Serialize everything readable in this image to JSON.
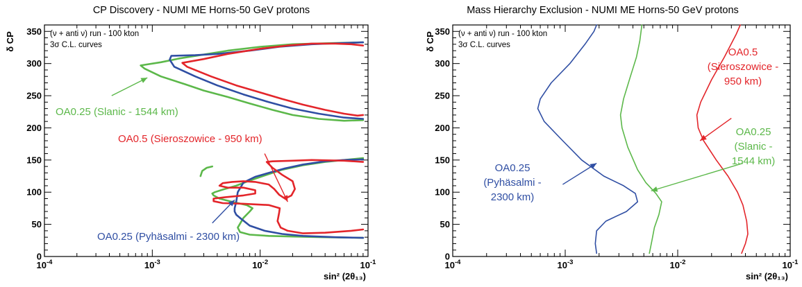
{
  "chart_data": [
    {
      "type": "line",
      "title": "CP Discovery - NUMI ME Horns-50 GeV protons",
      "xlabel": "sin² (2θ₁₃)",
      "ylabel": "δ CP",
      "xscale": "log",
      "xlim": [
        0.0001,
        0.1
      ],
      "ylim": [
        0,
        360
      ],
      "x_ticks": [
        {
          "value": 0.0001,
          "base": "10",
          "exp": "-4"
        },
        {
          "value": 0.001,
          "base": "10",
          "exp": "-3"
        },
        {
          "value": 0.01,
          "base": "10",
          "exp": "-2"
        },
        {
          "value": 0.1,
          "base": "10",
          "exp": "-1"
        }
      ],
      "y_ticks": [
        0,
        50,
        100,
        150,
        200,
        250,
        300,
        350
      ],
      "info_lines": [
        "(ν + anti ν) run - 100 kton",
        "3σ C.L. curves"
      ],
      "series": [
        {
          "color": "#5cb84a",
          "segments": [
            [
              [
                0.09,
                333
              ],
              [
                0.05,
                332
              ],
              [
                0.02,
                330
              ],
              [
                0.01,
                326
              ],
              [
                0.005,
                320
              ],
              [
                0.003,
                314
              ],
              [
                0.0018,
                308
              ],
              [
                0.0012,
                302
              ],
              [
                0.00078,
                297
              ],
              [
                0.00085,
                292
              ],
              [
                0.0012,
                280
              ],
              [
                0.002,
                268
              ],
              [
                0.003,
                258
              ],
              [
                0.005,
                248
              ],
              [
                0.008,
                238
              ],
              [
                0.013,
                228
              ],
              [
                0.02,
                220
              ],
              [
                0.035,
                214
              ],
              [
                0.06,
                211
              ],
              [
                0.09,
                212
              ]
            ],
            [
              [
                0.09,
                153
              ],
              [
                0.06,
                150
              ],
              [
                0.04,
                147
              ],
              [
                0.025,
                142
              ],
              [
                0.016,
                135
              ],
              [
                0.011,
                126
              ],
              [
                0.008,
                118
              ],
              [
                0.006,
                110
              ],
              [
                0.0045,
                104
              ],
              [
                0.0038,
                100
              ],
              [
                0.0036,
                98
              ],
              [
                0.0037,
                95
              ],
              [
                0.0042,
                90
              ],
              [
                0.0055,
                85
              ],
              [
                0.0075,
                80
              ],
              [
                0.0085,
                75
              ],
              [
                0.008,
                70
              ],
              [
                0.007,
                60
              ],
              [
                0.0062,
                45
              ],
              [
                0.0065,
                38
              ],
              [
                0.008,
                34
              ],
              [
                0.012,
                32
              ],
              [
                0.02,
                31
              ],
              [
                0.04,
                30
              ],
              [
                0.09,
                29
              ]
            ],
            [
              [
                0.0028,
                125
              ],
              [
                0.0029,
                133
              ],
              [
                0.0032,
                138
              ],
              [
                0.0036,
                140
              ]
            ]
          ]
        },
        {
          "color": "#2f4ea3",
          "segments": [
            [
              [
                0.09,
                333
              ],
              [
                0.06,
                332
              ],
              [
                0.03,
                330
              ],
              [
                0.015,
                326
              ],
              [
                0.008,
                320
              ],
              [
                0.004,
                315
              ],
              [
                0.0025,
                313
              ],
              [
                0.0015,
                312
              ],
              [
                0.00145,
                306
              ],
              [
                0.0016,
                295
              ],
              [
                0.0025,
                280
              ],
              [
                0.004,
                266
              ],
              [
                0.007,
                252
              ],
              [
                0.012,
                240
              ],
              [
                0.02,
                230
              ],
              [
                0.035,
                222
              ],
              [
                0.06,
                216
              ],
              [
                0.09,
                214
              ]
            ],
            [
              [
                0.09,
                151
              ],
              [
                0.06,
                150
              ],
              [
                0.04,
                148
              ],
              [
                0.025,
                143
              ],
              [
                0.017,
                137
              ],
              [
                0.012,
                130
              ],
              [
                0.009,
                124
              ],
              [
                0.007,
                115
              ],
              [
                0.0062,
                100
              ],
              [
                0.006,
                85
              ],
              [
                0.0058,
                75
              ],
              [
                0.0058,
                70
              ],
              [
                0.006,
                65
              ],
              [
                0.0065,
                60
              ],
              [
                0.008,
                48
              ],
              [
                0.011,
                40
              ],
              [
                0.016,
                35
              ],
              [
                0.025,
                32
              ],
              [
                0.05,
                30
              ],
              [
                0.09,
                29
              ]
            ]
          ]
        },
        {
          "color": "#e3252a",
          "segments": [
            [
              [
                0.09,
                328
              ],
              [
                0.07,
                330
              ],
              [
                0.05,
                331
              ],
              [
                0.03,
                331
              ],
              [
                0.018,
                328
              ],
              [
                0.01,
                323
              ],
              [
                0.005,
                315
              ],
              [
                0.003,
                307
              ],
              [
                0.0019,
                301
              ],
              [
                0.0021,
                295
              ],
              [
                0.0035,
                280
              ],
              [
                0.006,
                266
              ],
              [
                0.01,
                255
              ],
              [
                0.016,
                245
              ],
              [
                0.025,
                236
              ],
              [
                0.04,
                228
              ],
              [
                0.06,
                222
              ],
              [
                0.08,
                219
              ],
              [
                0.09,
                220
              ]
            ],
            [
              [
                0.09,
                147
              ],
              [
                0.06,
                149
              ],
              [
                0.03,
                150
              ],
              [
                0.02,
                149
              ],
              [
                0.013,
                148
              ],
              [
                0.0115,
                147
              ],
              [
                0.013,
                138
              ],
              [
                0.016,
                127
              ],
              [
                0.02,
                117
              ],
              [
                0.021,
                105
              ],
              [
                0.0195,
                95
              ],
              [
                0.017,
                90
              ],
              [
                0.015,
                96
              ],
              [
                0.0135,
                105
              ],
              [
                0.012,
                112
              ],
              [
                0.009,
                116
              ],
              [
                0.007,
                117
              ],
              [
                0.0055,
                116
              ],
              [
                0.0045,
                114
              ],
              [
                0.0042,
                110
              ],
              [
                0.005,
                107
              ],
              [
                0.007,
                107
              ],
              [
                0.009,
                103
              ],
              [
                0.009,
                98
              ],
              [
                0.007,
                95
              ],
              [
                0.0047,
                92
              ],
              [
                0.0037,
                90
              ],
              [
                0.0037,
                86
              ],
              [
                0.0045,
                83
              ],
              [
                0.007,
                82
              ],
              [
                0.012,
                80
              ],
              [
                0.0152,
                75
              ],
              [
                0.015,
                68
              ],
              [
                0.0145,
                55
              ],
              [
                0.0155,
                45
              ],
              [
                0.018,
                40
              ],
              [
                0.025,
                36
              ],
              [
                0.04,
                37
              ],
              [
                0.07,
                40
              ],
              [
                0.09,
                42
              ]
            ]
          ]
        }
      ],
      "annotations": [
        {
          "lines": [
            "OA0.25 (Slanic - 1544 km)"
          ],
          "color": "#5cb84a",
          "arrow_from": [
            0.00042,
            250
          ],
          "arrow_to": [
            0.0009,
            278
          ]
        },
        {
          "lines": [
            "OA0.5 (Sieroszowice - 950 km)"
          ],
          "color": "#e3252a",
          "arrow_from": [
            0.011,
            160
          ],
          "arrow_to": [
            0.018,
            85
          ]
        },
        {
          "lines": [
            "OA0.25 (Pyhäsalmi - 2300 km)"
          ],
          "color": "#2f4ea3",
          "arrow_from": [
            0.0036,
            52
          ],
          "arrow_to": [
            0.0058,
            88
          ]
        }
      ]
    },
    {
      "type": "line",
      "title": "Mass Hierarchy Exclusion - NUMI ME Horns-50 GeV protons",
      "xlabel": "sin² (2θ₁₃)",
      "ylabel": "δ CP",
      "xscale": "log",
      "xlim": [
        0.0001,
        0.1
      ],
      "ylim": [
        0,
        360
      ],
      "x_ticks": [
        {
          "value": 0.0001,
          "base": "10",
          "exp": "-4"
        },
        {
          "value": 0.001,
          "base": "10",
          "exp": "-3"
        },
        {
          "value": 0.01,
          "base": "10",
          "exp": "-2"
        },
        {
          "value": 0.1,
          "base": "10",
          "exp": "-1"
        }
      ],
      "y_ticks": [
        0,
        50,
        100,
        150,
        200,
        250,
        300,
        350
      ],
      "info_lines": [
        "(ν + anti ν) run - 100 kton",
        "3σ C.L. curves"
      ],
      "series": [
        {
          "color": "#2f4ea3",
          "segments": [
            [
              [
                0.0019,
                5
              ],
              [
                0.00185,
                20
              ],
              [
                0.0019,
                40
              ],
              [
                0.0023,
                55
              ],
              [
                0.0035,
                70
              ],
              [
                0.0044,
                85
              ],
              [
                0.0042,
                98
              ],
              [
                0.0033,
                110
              ],
              [
                0.0022,
                125
              ],
              [
                0.0014,
                150
              ],
              [
                0.00095,
                180
              ],
              [
                0.00065,
                210
              ],
              [
                0.00057,
                230
              ],
              [
                0.0006,
                245
              ],
              [
                0.00075,
                270
              ],
              [
                0.0011,
                300
              ],
              [
                0.0015,
                330
              ],
              [
                0.0018,
                350
              ],
              [
                0.0019,
                360
              ]
            ]
          ]
        },
        {
          "color": "#5cb84a",
          "segments": [
            [
              [
                0.0056,
                5
              ],
              [
                0.0059,
                25
              ],
              [
                0.0062,
                45
              ],
              [
                0.0068,
                65
              ],
              [
                0.0072,
                85
              ],
              [
                0.0064,
                98
              ],
              [
                0.0052,
                115
              ],
              [
                0.0044,
                135
              ],
              [
                0.0036,
                170
              ],
              [
                0.0032,
                200
              ],
              [
                0.0031,
                220
              ],
              [
                0.0033,
                245
              ],
              [
                0.0038,
                280
              ],
              [
                0.0043,
                310
              ],
              [
                0.0046,
                335
              ],
              [
                0.0048,
                360
              ]
            ]
          ]
        },
        {
          "color": "#e3252a",
          "segments": [
            [
              [
                0.037,
                5
              ],
              [
                0.04,
                20
              ],
              [
                0.042,
                35
              ],
              [
                0.041,
                55
              ],
              [
                0.038,
                80
              ],
              [
                0.034,
                100
              ],
              [
                0.028,
                125
              ],
              [
                0.022,
                150
              ],
              [
                0.017,
                180
              ],
              [
                0.0152,
                200
              ],
              [
                0.0148,
                220
              ],
              [
                0.016,
                240
              ],
              [
                0.02,
                275
              ],
              [
                0.026,
                310
              ],
              [
                0.033,
                345
              ],
              [
                0.036,
                360
              ]
            ]
          ]
        }
      ],
      "annotations": [
        {
          "lines": [
            "OA0.5",
            "(Sieroszowice -",
            "950 km)"
          ],
          "color": "#e3252a",
          "arrow_from": [
            0.03,
            215
          ],
          "arrow_to": [
            0.0158,
            180
          ]
        },
        {
          "lines": [
            "OA0.25",
            "(Slanic -",
            "1544 km)"
          ],
          "color": "#5cb84a",
          "arrow_from": [
            0.038,
            145
          ],
          "arrow_to": [
            0.0058,
            102
          ]
        },
        {
          "lines": [
            "OA0.25",
            "(Pyhäsalmi -",
            "2300 km)"
          ],
          "color": "#2f4ea3",
          "arrow_from": [
            0.00095,
            112
          ],
          "arrow_to": [
            0.0019,
            145
          ]
        }
      ]
    }
  ]
}
